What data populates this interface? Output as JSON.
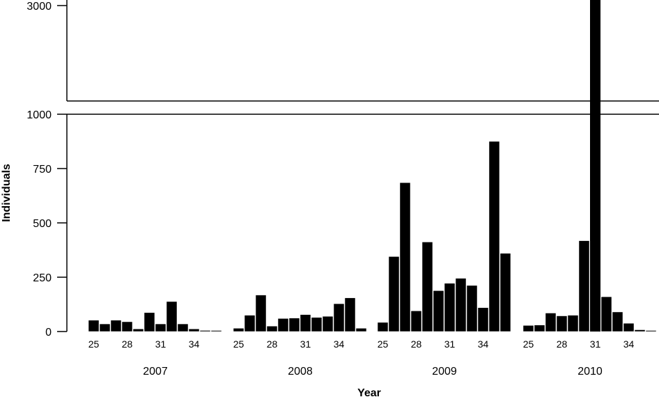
{
  "chart_data": {
    "type": "bar",
    "xlabel": "Year",
    "ylabel": "Individuals",
    "axis_break": {
      "lower_ylim": [
        0,
        1000
      ],
      "upper_ylim": [
        1100,
        3000
      ]
    },
    "y_ticks_lower": [
      "0",
      "250",
      "500",
      "750",
      "1000"
    ],
    "y_ticks_upper": [
      "3000"
    ],
    "week_tick_labels": [
      "25",
      "28",
      "31",
      "34"
    ],
    "groups": [
      {
        "year": "2007",
        "weeks": [
          25,
          26,
          27,
          28,
          29,
          30,
          31,
          32,
          33,
          34,
          35,
          36
        ],
        "values": [
          52,
          35,
          52,
          45,
          12,
          87,
          35,
          138,
          35,
          12,
          5,
          3
        ]
      },
      {
        "year": "2008",
        "weeks": [
          25,
          26,
          27,
          28,
          29,
          30,
          31,
          32,
          33,
          34,
          35,
          36
        ],
        "values": [
          15,
          75,
          168,
          25,
          60,
          62,
          78,
          65,
          70,
          128,
          155,
          15
        ]
      },
      {
        "year": "2009",
        "weeks": [
          25,
          26,
          27,
          28,
          29,
          30,
          31,
          32,
          33,
          34,
          35,
          36
        ],
        "values": [
          42,
          345,
          685,
          95,
          412,
          188,
          222,
          245,
          212,
          110,
          875,
          360
        ]
      },
      {
        "year": "2010",
        "weeks": [
          25,
          26,
          27,
          28,
          29,
          30,
          31,
          32,
          33,
          34,
          35,
          36
        ],
        "values": [
          28,
          30,
          85,
          72,
          75,
          418,
          3000,
          160,
          90,
          38,
          8,
          3
        ]
      }
    ],
    "colors": {
      "bar": "#000000",
      "axis": "#000000",
      "background": "#ffffff"
    },
    "grid": false,
    "legend": "none"
  }
}
